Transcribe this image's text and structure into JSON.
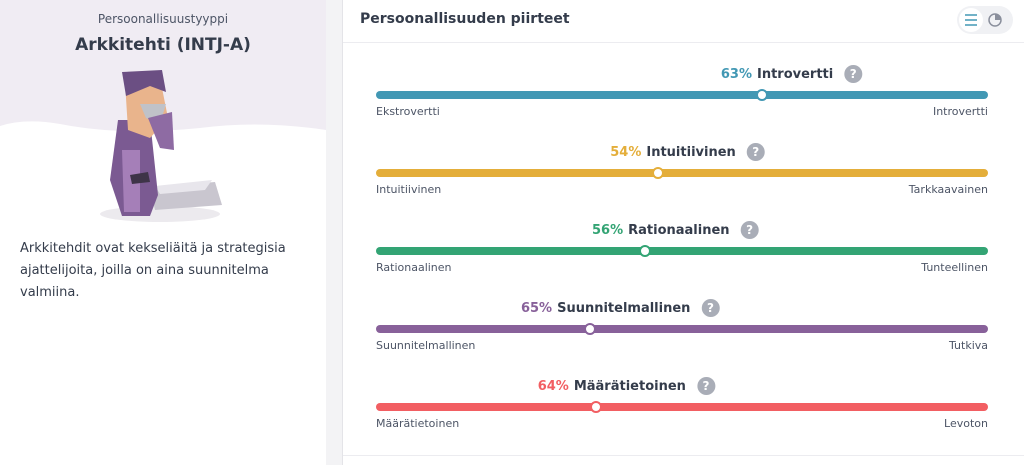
{
  "sidebar": {
    "kicker": "Persoonallisuustyyppi",
    "title": "Arkkitehti (INTJ-A)",
    "description": "Arkkitehdit ovat kekseliäitä ja strategisia ajattelijoita, joilla on aina suunnitelma valmiina."
  },
  "card": {
    "title": "Persoonallisuuden piirteet",
    "help": "?",
    "xlim": [
      0,
      100
    ],
    "traits": [
      {
        "value": 63,
        "value_label": "63%",
        "trait": "Introvertti",
        "left": "Ekstrovertti",
        "right": "Introvertti",
        "side": "right",
        "color": "#4298b4"
      },
      {
        "value": 54,
        "value_label": "54%",
        "trait": "Intuitiivinen",
        "left": "Intuitiivinen",
        "right": "Tarkkaavainen",
        "side": "left",
        "color": "#e4ae3a"
      },
      {
        "value": 56,
        "value_label": "56%",
        "trait": "Rationaalinen",
        "left": "Rationaalinen",
        "right": "Tunteellinen",
        "side": "left",
        "color": "#33a474"
      },
      {
        "value": 65,
        "value_label": "65%",
        "trait": "Suunnitelmallinen",
        "left": "Suunnitelmallinen",
        "right": "Tutkiva",
        "side": "left",
        "color": "#88619a"
      },
      {
        "value": 64,
        "value_label": "64%",
        "trait": "Määrätietoinen",
        "left": "Määrätietoinen",
        "right": "Levoton",
        "side": "left",
        "color": "#f25e62"
      }
    ]
  }
}
